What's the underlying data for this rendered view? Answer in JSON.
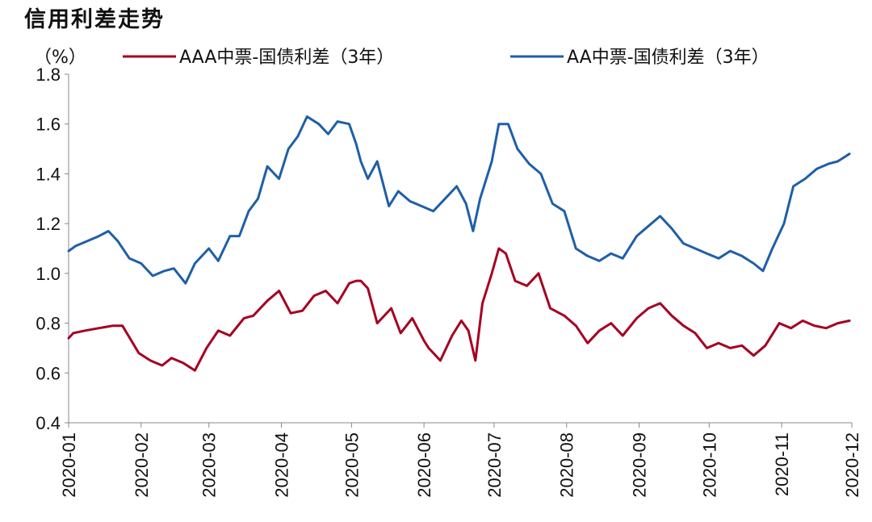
{
  "chart_data": {
    "type": "line",
    "title": "信用利差走势",
    "ylabel": "（%）",
    "xlabel": "",
    "ylim": [
      0.4,
      1.8
    ],
    "yticks": [
      "0.4",
      "0.6",
      "0.8",
      "1.0",
      "1.2",
      "1.4",
      "1.6",
      "1.8"
    ],
    "xlim": [
      "2020-01-01",
      "2020-12-01"
    ],
    "xticks": [
      "2020-01",
      "2020-02",
      "2020-03",
      "2020-04",
      "2020-05",
      "2020-06",
      "2020-07",
      "2020-08",
      "2020-09",
      "2020-10",
      "2020-11",
      "2020-12"
    ],
    "legend": "top",
    "grid": false,
    "series": [
      {
        "name": "AAA中票-国债利差（3年）",
        "color": "#A50021",
        "x": [
          "2020-01-01",
          "2020-01-03",
          "2020-01-08",
          "2020-01-14",
          "2020-01-20",
          "2020-01-24",
          "2020-01-31",
          "2020-02-05",
          "2020-02-10",
          "2020-02-14",
          "2020-02-19",
          "2020-02-24",
          "2020-02-29",
          "2020-03-05",
          "2020-03-10",
          "2020-03-16",
          "2020-03-20",
          "2020-03-26",
          "2020-03-31",
          "2020-04-05",
          "2020-04-10",
          "2020-04-15",
          "2020-04-20",
          "2020-04-25",
          "2020-04-30",
          "2020-05-03",
          "2020-05-05",
          "2020-05-08",
          "2020-05-12",
          "2020-05-18",
          "2020-05-22",
          "2020-05-27",
          "2020-06-01",
          "2020-06-03",
          "2020-06-08",
          "2020-06-13",
          "2020-06-17",
          "2020-06-20",
          "2020-06-23",
          "2020-06-26",
          "2020-06-30",
          "2020-07-03",
          "2020-07-06",
          "2020-07-10",
          "2020-07-15",
          "2020-07-20",
          "2020-07-25",
          "2020-07-31",
          "2020-08-05",
          "2020-08-10",
          "2020-08-15",
          "2020-08-20",
          "2020-08-25",
          "2020-08-31",
          "2020-09-05",
          "2020-09-10",
          "2020-09-15",
          "2020-09-20",
          "2020-09-25",
          "2020-09-30",
          "2020-10-05",
          "2020-10-10",
          "2020-10-15",
          "2020-10-20",
          "2020-10-25",
          "2020-10-31",
          "2020-11-05",
          "2020-11-10",
          "2020-11-15",
          "2020-11-20",
          "2020-11-25",
          "2020-11-30"
        ],
        "values": [
          0.74,
          0.76,
          0.77,
          0.78,
          0.79,
          0.79,
          0.68,
          0.65,
          0.63,
          0.66,
          0.64,
          0.61,
          0.7,
          0.77,
          0.75,
          0.82,
          0.83,
          0.89,
          0.93,
          0.84,
          0.85,
          0.91,
          0.93,
          0.88,
          0.96,
          0.97,
          0.97,
          0.94,
          0.8,
          0.86,
          0.76,
          0.82,
          0.73,
          0.7,
          0.65,
          0.75,
          0.81,
          0.77,
          0.65,
          0.88,
          1.0,
          1.1,
          1.08,
          0.97,
          0.95,
          1.0,
          0.86,
          0.83,
          0.79,
          0.72,
          0.77,
          0.8,
          0.75,
          0.82,
          0.86,
          0.88,
          0.83,
          0.79,
          0.76,
          0.7,
          0.72,
          0.7,
          0.71,
          0.67,
          0.71,
          0.8,
          0.78,
          0.81,
          0.79,
          0.78,
          0.8,
          0.81
        ]
      },
      {
        "name": "AA中票-国债利差（3年）",
        "color": "#1F5FA6",
        "x": [
          "2020-01-01",
          "2020-01-04",
          "2020-01-09",
          "2020-01-14",
          "2020-01-18",
          "2020-01-22",
          "2020-01-27",
          "2020-02-01",
          "2020-02-06",
          "2020-02-11",
          "2020-02-15",
          "2020-02-20",
          "2020-02-24",
          "2020-03-01",
          "2020-03-05",
          "2020-03-10",
          "2020-03-14",
          "2020-03-18",
          "2020-03-22",
          "2020-03-26",
          "2020-03-31",
          "2020-04-04",
          "2020-04-08",
          "2020-04-12",
          "2020-04-17",
          "2020-04-21",
          "2020-04-25",
          "2020-04-30",
          "2020-05-03",
          "2020-05-05",
          "2020-05-08",
          "2020-05-12",
          "2020-05-17",
          "2020-05-21",
          "2020-05-26",
          "2020-05-31",
          "2020-06-05",
          "2020-06-10",
          "2020-06-15",
          "2020-06-19",
          "2020-06-22",
          "2020-06-25",
          "2020-06-30",
          "2020-07-03",
          "2020-07-07",
          "2020-07-11",
          "2020-07-16",
          "2020-07-21",
          "2020-07-26",
          "2020-07-31",
          "2020-08-05",
          "2020-08-10",
          "2020-08-15",
          "2020-08-20",
          "2020-08-25",
          "2020-08-31",
          "2020-09-05",
          "2020-09-10",
          "2020-09-15",
          "2020-09-20",
          "2020-09-25",
          "2020-09-30",
          "2020-10-05",
          "2020-10-10",
          "2020-10-15",
          "2020-10-20",
          "2020-10-24",
          "2020-10-28",
          "2020-11-02",
          "2020-11-06",
          "2020-11-11",
          "2020-11-16",
          "2020-11-21",
          "2020-11-25",
          "2020-11-30"
        ],
        "values": [
          1.09,
          1.11,
          1.13,
          1.15,
          1.17,
          1.13,
          1.06,
          1.04,
          0.99,
          1.01,
          1.02,
          0.96,
          1.04,
          1.1,
          1.05,
          1.15,
          1.15,
          1.25,
          1.3,
          1.43,
          1.38,
          1.5,
          1.55,
          1.63,
          1.6,
          1.56,
          1.61,
          1.6,
          1.52,
          1.45,
          1.38,
          1.45,
          1.27,
          1.33,
          1.29,
          1.27,
          1.25,
          1.3,
          1.35,
          1.28,
          1.17,
          1.3,
          1.45,
          1.6,
          1.6,
          1.5,
          1.44,
          1.4,
          1.28,
          1.25,
          1.1,
          1.07,
          1.05,
          1.08,
          1.06,
          1.15,
          1.19,
          1.23,
          1.18,
          1.12,
          1.1,
          1.08,
          1.06,
          1.09,
          1.07,
          1.04,
          1.01,
          1.1,
          1.2,
          1.35,
          1.38,
          1.42,
          1.44,
          1.45,
          1.48
        ]
      }
    ]
  }
}
